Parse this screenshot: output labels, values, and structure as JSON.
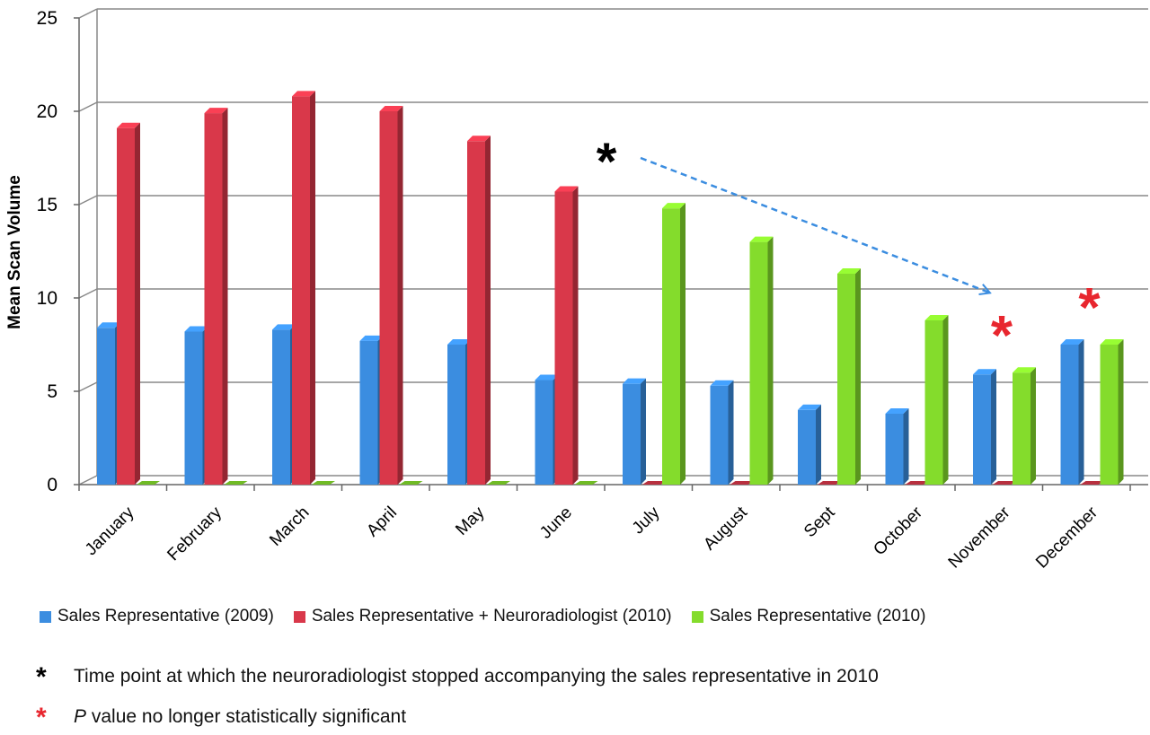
{
  "chart_data": {
    "type": "bar",
    "ylabel": "Mean Scan Volume",
    "xlabel": "",
    "ylim": [
      0,
      25
    ],
    "yticks": [
      0,
      5,
      10,
      15,
      20,
      25
    ],
    "grid": true,
    "three_d": true,
    "legend_position": "bottom",
    "categories": [
      "January",
      "February",
      "March",
      "April",
      "May",
      "June",
      "July",
      "August",
      "Sept",
      "October",
      "November",
      "December"
    ],
    "series": [
      {
        "name": "Sales Representative (2009)",
        "color": "#3b8de0",
        "values": [
          8.4,
          8.2,
          8.3,
          7.7,
          7.5,
          5.6,
          5.4,
          5.3,
          4.0,
          3.8,
          5.9,
          7.5
        ]
      },
      {
        "name": "Sales Representative + Neuroradiologist (2010)",
        "color": "#d9384a",
        "values": [
          19.1,
          19.9,
          20.8,
          20.0,
          18.4,
          15.7,
          0,
          0,
          0,
          0,
          0,
          0
        ]
      },
      {
        "name": "Sales Representative (2010)",
        "color": "#84dc2c",
        "values": [
          0,
          0,
          0,
          0,
          0,
          0,
          14.8,
          13.0,
          11.3,
          8.8,
          6.0,
          7.5
        ]
      }
    ],
    "annotations": [
      {
        "symbol": "*",
        "color": "#000000",
        "category": "July",
        "arrow_to": "November"
      },
      {
        "symbol": "*",
        "color": "#e8262e",
        "category": "November"
      },
      {
        "symbol": "*",
        "color": "#e8262e",
        "category": "December"
      }
    ]
  },
  "notes": [
    {
      "symbol": "*",
      "color": "#000000",
      "text": "Time point at which the neuroradiologist stopped accompanying the sales representative in 2010"
    },
    {
      "symbol": "*",
      "color": "#e8262e",
      "italic_prefix": "P",
      "text": " value no longer statistically significant"
    }
  ]
}
